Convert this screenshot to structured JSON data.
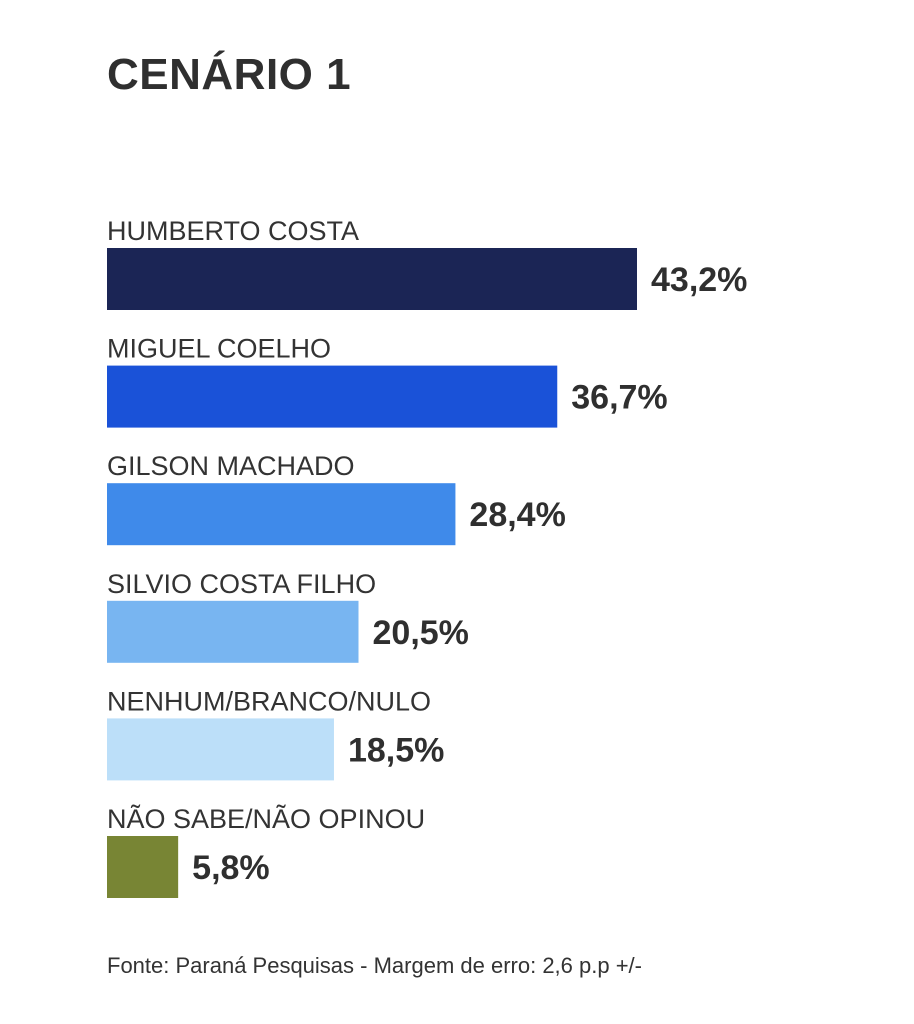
{
  "chart_data": {
    "type": "bar",
    "orientation": "horizontal",
    "title": "CENÁRIO 1",
    "categories": [
      "HUMBERTO COSTA",
      "MIGUEL COELHO",
      "GILSON MACHADO",
      "SILVIO COSTA FILHO",
      "NENHUM/BRANCO/NULO",
      "NÃO SABE/NÃO OPINOU"
    ],
    "values": [
      43.2,
      36.7,
      28.4,
      20.5,
      18.5,
      5.8
    ],
    "value_labels": [
      "43,2%",
      "36,7%",
      "28,4%",
      "20,5%",
      "18,5%",
      "5,8%"
    ],
    "colors": [
      "#1b2555",
      "#1a52d8",
      "#3f8aea",
      "#78b5f1",
      "#bcdff9",
      "#788534"
    ],
    "xlim": [
      0,
      100
    ],
    "grid": false,
    "legend": "none"
  },
  "source": "Fonte: Paraná Pesquisas - Margem de erro: 2,6 p.p +/-"
}
